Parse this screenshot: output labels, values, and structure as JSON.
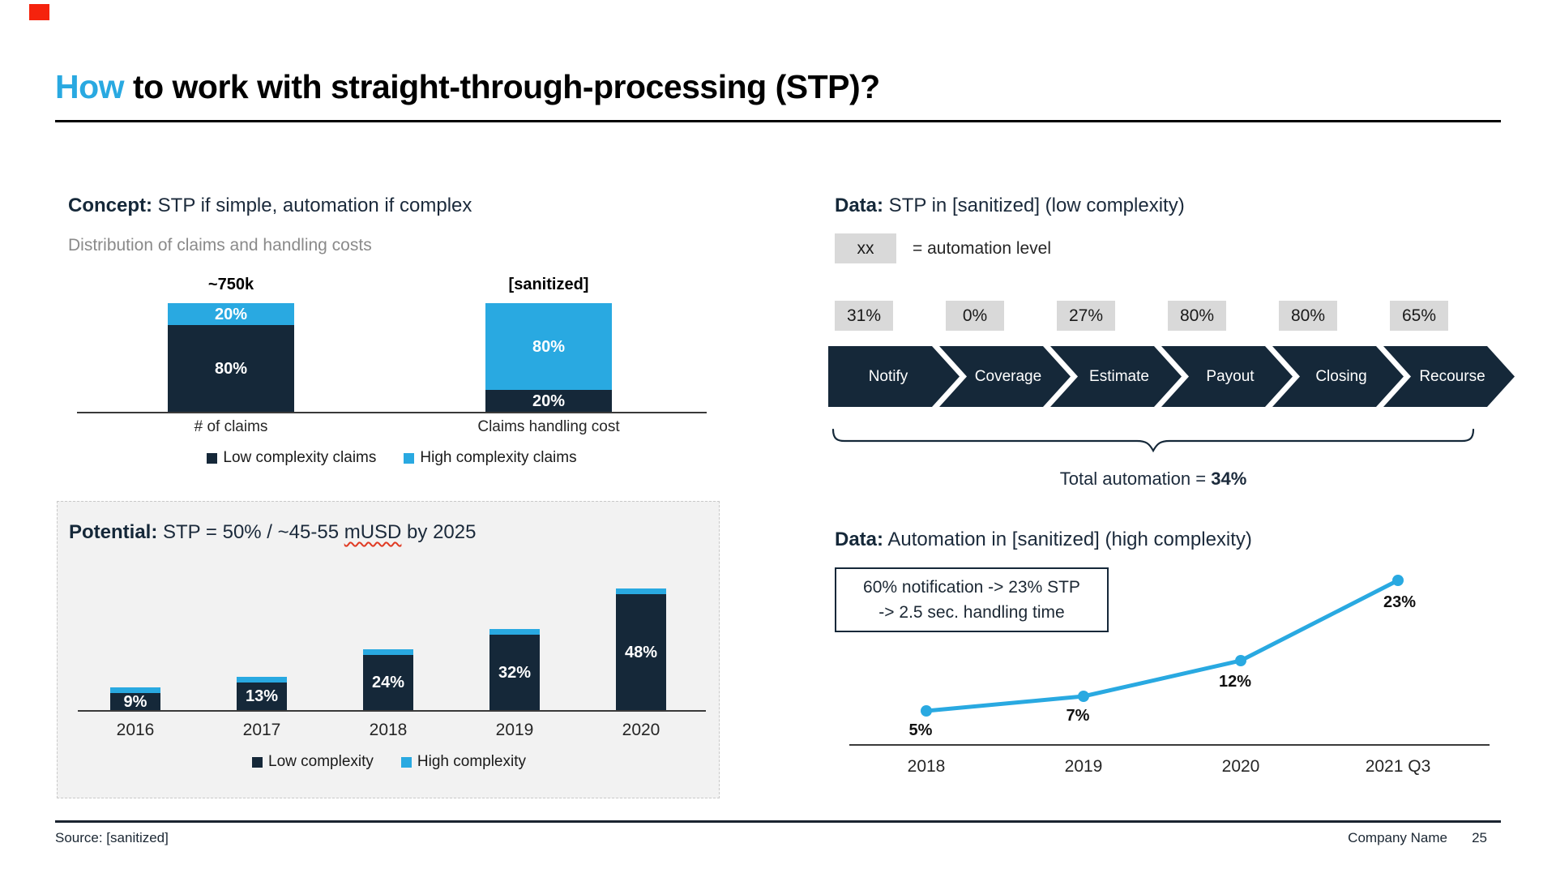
{
  "slide": {
    "title": {
      "highlight": "How",
      "rest": " to work with straight-through-processing (STP)?"
    },
    "footer": {
      "source": "Source: [sanitized]",
      "company": "Company Name",
      "page": "25"
    }
  },
  "colors": {
    "navy": "#152839",
    "blue": "#29A9E1",
    "gray_box": "#D9D9D9",
    "panel_bg": "#F2F2F2",
    "red_marker": "#F5230D"
  },
  "concept_section": {
    "heading_label": "Concept:",
    "heading_text": " STP if simple, automation if complex",
    "subtitle": "Distribution of claims and handling costs"
  },
  "potential_section": {
    "heading_label": "Potential:",
    "heading_text_before": " STP = 50% / ~45-55 ",
    "heading_text_wavy": "mUSD",
    "heading_text_after": " by 2025"
  },
  "stp_section": {
    "heading_label": "Data:",
    "heading_text": " STP in [sanitized] (low complexity)",
    "legend_key": "xx",
    "legend_text": "= automation level",
    "steps": [
      {
        "label": "Notify",
        "automation": "31%"
      },
      {
        "label": "Coverage",
        "automation": "0%"
      },
      {
        "label": "Estimate",
        "automation": "27%"
      },
      {
        "label": "Payout",
        "automation": "80%"
      },
      {
        "label": "Closing",
        "automation": "80%"
      },
      {
        "label": "Recourse",
        "automation": "65%"
      }
    ],
    "total_prefix": "Total automation = ",
    "total_value": "34%"
  },
  "automation_section": {
    "heading_label": "Data:",
    "heading_text": " Automation in [sanitized] (high complexity)",
    "callout_line1": "60% notification -> 23% STP",
    "callout_line2": "-> 2.5 sec. handling time"
  },
  "chart_data": [
    {
      "id": "claims_distribution",
      "type": "bar",
      "stacked": true,
      "title": "Distribution of claims and handling costs",
      "bar_top_labels": [
        "~750k",
        "[sanitized]"
      ],
      "categories": [
        "# of claims",
        "Claims handling cost"
      ],
      "series": [
        {
          "name": "High complexity claims",
          "color_key": "blue",
          "values": [
            20,
            80
          ],
          "labels": [
            "20%",
            "80%"
          ]
        },
        {
          "name": "Low complexity claims",
          "color_key": "navy",
          "values": [
            80,
            20
          ],
          "labels": [
            "80%",
            "20%"
          ]
        }
      ],
      "ylim": [
        0,
        100
      ],
      "unit": "percent",
      "legend": [
        {
          "label": "Low complexity claims",
          "color_key": "navy"
        },
        {
          "label": "High complexity claims",
          "color_key": "blue"
        }
      ]
    },
    {
      "id": "stp_potential",
      "type": "bar",
      "stacked": true,
      "title": "Potential: STP = 50% / ~45-55 mUSD by 2025",
      "categories": [
        "2016",
        "2017",
        "2018",
        "2019",
        "2020"
      ],
      "series": [
        {
          "name": "Low complexity",
          "color_key": "navy",
          "values": [
            9,
            13,
            24,
            32,
            48
          ],
          "labels": [
            "9%",
            "13%",
            "24%",
            "32%",
            "48%"
          ]
        },
        {
          "name": "High complexity",
          "color_key": "blue",
          "values": [
            2,
            2,
            2,
            2,
            2
          ],
          "labels": null
        }
      ],
      "ylim": [
        0,
        60
      ],
      "legend_position": "bottom",
      "legend": [
        {
          "label": "Low complexity",
          "color_key": "navy"
        },
        {
          "label": "High complexity",
          "color_key": "blue"
        }
      ]
    },
    {
      "id": "automation_trend",
      "type": "line",
      "x": [
        "2018",
        "2019",
        "2020",
        "2021 Q3"
      ],
      "values": [
        5,
        7,
        12,
        23
      ],
      "data_labels": [
        "5%",
        "7%",
        "12%",
        "23%"
      ],
      "line_color_key": "blue",
      "ylim": [
        0,
        25
      ],
      "grid": false
    }
  ]
}
